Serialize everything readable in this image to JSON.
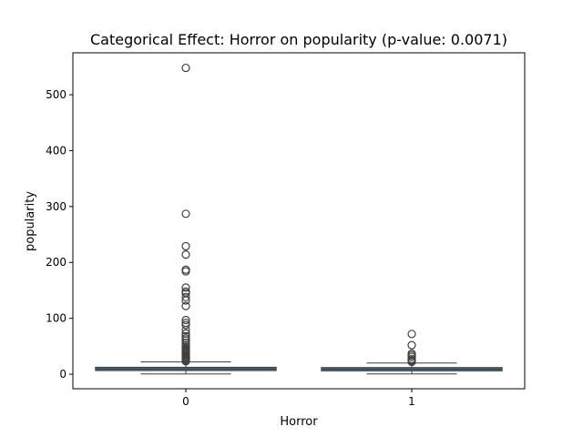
{
  "chart_data": {
    "type": "box",
    "title": "Categorical Effect: Horror on popularity (p-value: 0.0071)",
    "xlabel": "Horror",
    "ylabel": "popularity",
    "categories": [
      "0",
      "1"
    ],
    "ylim": [
      -26,
      575
    ],
    "yticks": [
      0,
      100,
      200,
      300,
      400,
      500
    ],
    "grid": false,
    "box_color": "#3b6e8f",
    "boxes": [
      {
        "category": "0",
        "whisker_low": 0.5,
        "q1": 6.5,
        "median": 9.5,
        "q3": 12.5,
        "whisker_high": 22.0,
        "outliers": [
          548,
          287,
          229,
          214,
          187,
          184,
          155,
          148,
          145,
          138,
          132,
          122,
          97,
          92,
          88,
          79,
          73,
          68,
          64,
          60,
          56,
          52,
          49,
          46,
          44,
          42,
          40,
          38,
          36,
          34,
          32,
          30,
          28,
          26,
          25,
          24,
          23
        ]
      },
      {
        "category": "1",
        "whisker_low": 0.5,
        "q1": 6.0,
        "median": 9.0,
        "q3": 12.0,
        "whisker_high": 20.0,
        "outliers": [
          72,
          52,
          37,
          34,
          31,
          27,
          25,
          23,
          22
        ]
      }
    ]
  }
}
